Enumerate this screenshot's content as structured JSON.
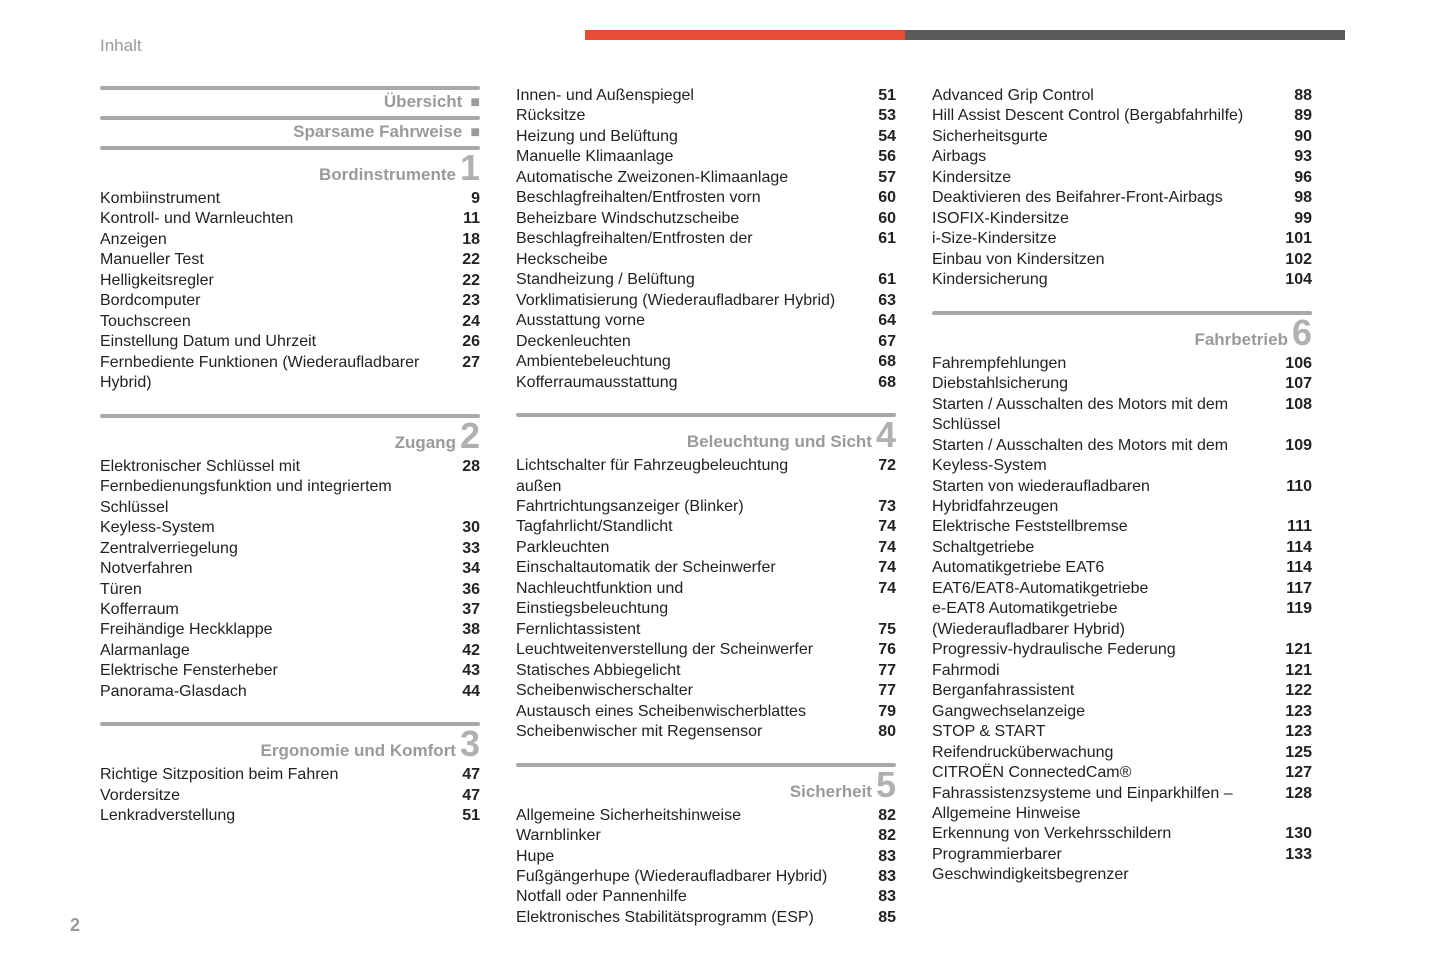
{
  "meta": {
    "title": "Inhalt",
    "page_number": "2"
  },
  "columns": [
    {
      "sections": [
        {
          "title": "Übersicht",
          "bullet": "■",
          "entries": []
        },
        {
          "title": "Sparsame Fahrweise",
          "bullet": "■",
          "entries": []
        },
        {
          "title": "Bordinstrumente",
          "number": "1",
          "entries": [
            {
              "label": "Kombiinstrument",
              "page": "9"
            },
            {
              "label": "Kontroll- und Warnleuchten",
              "page": "11"
            },
            {
              "label": "Anzeigen",
              "page": "18"
            },
            {
              "label": "Manueller Test",
              "page": "22"
            },
            {
              "label": "Helligkeitsregler",
              "page": "22"
            },
            {
              "label": "Bordcomputer",
              "page": "23"
            },
            {
              "label": "Touchscreen",
              "page": "24"
            },
            {
              "label": "Einstellung Datum und Uhrzeit",
              "page": "26"
            },
            {
              "label": "Fernbediente Funktionen (Wiederaufladbarer Hybrid)",
              "page": "27"
            }
          ]
        },
        {
          "title": "Zugang",
          "number": "2",
          "entries": [
            {
              "label": "Elektronischer Schlüssel mit Fernbedienungsfunktion und integriertem Schlüssel",
              "page": "28"
            },
            {
              "label": "Keyless-System",
              "page": "30"
            },
            {
              "label": "Zentralverriegelung",
              "page": "33"
            },
            {
              "label": "Notverfahren",
              "page": "34"
            },
            {
              "label": "Türen",
              "page": "36"
            },
            {
              "label": "Kofferraum",
              "page": "37"
            },
            {
              "label": "Freihändige Heckklappe",
              "page": "38"
            },
            {
              "label": "Alarmanlage",
              "page": "42"
            },
            {
              "label": "Elektrische Fensterheber",
              "page": "43"
            },
            {
              "label": "Panorama-Glasdach",
              "page": "44"
            }
          ]
        },
        {
          "title": "Ergonomie und Komfort",
          "number": "3",
          "entries": [
            {
              "label": "Richtige Sitzposition beim Fahren",
              "page": "47"
            },
            {
              "label": "Vordersitze",
              "page": "47"
            },
            {
              "label": "Lenkradverstellung",
              "page": "51"
            }
          ]
        }
      ]
    },
    {
      "sections": [
        {
          "continuation": true,
          "entries": [
            {
              "label": "Innen- und Außenspiegel",
              "page": "51"
            },
            {
              "label": "Rücksitze",
              "page": "53"
            },
            {
              "label": "Heizung und Belüftung",
              "page": "54"
            },
            {
              "label": "Manuelle Klimaanlage",
              "page": "56"
            },
            {
              "label": "Automatische Zweizonen-Klimaanlage",
              "page": "57"
            },
            {
              "label": "Beschlagfreihalten/Entfrosten vorn",
              "page": "60"
            },
            {
              "label": "Beheizbare Windschutzscheibe",
              "page": "60"
            },
            {
              "label": "Beschlagfreihalten/Entfrosten der Heckscheibe",
              "page": "61"
            },
            {
              "label": "Standheizung / Belüftung",
              "page": "61"
            },
            {
              "label": "Vorklimatisierung (Wiederaufladbarer Hybrid)",
              "page": "63"
            },
            {
              "label": "Ausstattung vorne",
              "page": "64"
            },
            {
              "label": "Deckenleuchten",
              "page": "67"
            },
            {
              "label": "Ambientebeleuchtung",
              "page": "68"
            },
            {
              "label": "Kofferraumausstattung",
              "page": "68"
            }
          ]
        },
        {
          "title": "Beleuchtung und Sicht",
          "number": "4",
          "entries": [
            {
              "label": "Lichtschalter für Fahrzeugbeleuchtung außen",
              "page": "72"
            },
            {
              "label": "Fahrtrichtungsanzeiger (Blinker)",
              "page": "73"
            },
            {
              "label": "Tagfahrlicht/Standlicht",
              "page": "74"
            },
            {
              "label": "Parkleuchten",
              "page": "74"
            },
            {
              "label": "Einschaltautomatik der Scheinwerfer",
              "page": "74"
            },
            {
              "label": "Nachleuchtfunktion und Einstiegsbeleuchtung",
              "page": "74"
            },
            {
              "label": "Fernlichtassistent",
              "page": "75"
            },
            {
              "label": "Leuchtweitenverstellung der Scheinwerfer",
              "page": "76"
            },
            {
              "label": "Statisches Abbiegelicht",
              "page": "77"
            },
            {
              "label": "Scheibenwischerschalter",
              "page": "77"
            },
            {
              "label": "Austausch eines Scheibenwischerblattes",
              "page": "79"
            },
            {
              "label": "Scheibenwischer mit Regensensor",
              "page": "80"
            }
          ]
        },
        {
          "title": "Sicherheit",
          "number": "5",
          "entries": [
            {
              "label": "Allgemeine Sicherheitshinweise",
              "page": "82"
            },
            {
              "label": "Warnblinker",
              "page": "82"
            },
            {
              "label": "Hupe",
              "page": "83"
            },
            {
              "label": "Fußgängerhupe (Wiederaufladbarer Hybrid)",
              "page": "83"
            },
            {
              "label": "Notfall oder Pannenhilfe",
              "page": "83"
            },
            {
              "label": "Elektronisches Stabilitätsprogramm (ESP)",
              "page": "85"
            }
          ]
        }
      ]
    },
    {
      "sections": [
        {
          "continuation": true,
          "entries": [
            {
              "label": "Advanced Grip Control",
              "page": "88"
            },
            {
              "label": "Hill Assist Descent Control (Bergabfahrhilfe)",
              "page": "89"
            },
            {
              "label": "Sicherheitsgurte",
              "page": "90"
            },
            {
              "label": "Airbags",
              "page": "93"
            },
            {
              "label": "Kindersitze",
              "page": "96"
            },
            {
              "label": "Deaktivieren des Beifahrer-Front-Airbags",
              "page": "98"
            },
            {
              "label": "ISOFIX-Kindersitze",
              "page": "99"
            },
            {
              "label": "i-Size-Kindersitze",
              "page": "101"
            },
            {
              "label": "Einbau von Kindersitzen",
              "page": "102"
            },
            {
              "label": "Kindersicherung",
              "page": "104"
            }
          ]
        },
        {
          "title": "Fahrbetrieb",
          "number": "6",
          "entries": [
            {
              "label": "Fahrempfehlungen",
              "page": "106"
            },
            {
              "label": "Diebstahlsicherung",
              "page": "107"
            },
            {
              "label": "Starten / Ausschalten des Motors mit dem Schlüssel",
              "page": "108"
            },
            {
              "label": "Starten / Ausschalten des Motors mit dem Keyless-System",
              "page": "109"
            },
            {
              "label": "Starten von wiederaufladbaren Hybridfahrzeugen",
              "page": "110"
            },
            {
              "label": "Elektrische Feststellbremse",
              "page": "111"
            },
            {
              "label": "Schaltgetriebe",
              "page": "114"
            },
            {
              "label": "Automatikgetriebe EAT6",
              "page": "114"
            },
            {
              "label": "EAT6/EAT8-Automatikgetriebe",
              "page": "117"
            },
            {
              "label": "e-EAT8 Automatikgetriebe (Wiederaufladbarer Hybrid)",
              "page": "119"
            },
            {
              "label": "Progressiv-hydraulische Federung",
              "page": "121"
            },
            {
              "label": "Fahrmodi",
              "page": "121"
            },
            {
              "label": "Berganfahrassistent",
              "page": "122"
            },
            {
              "label": "Gangwechselanzeige",
              "page": "123"
            },
            {
              "label": "STOP & START",
              "page": "123"
            },
            {
              "label": "Reifendrucküberwachung",
              "page": "125"
            },
            {
              "label": "CITROËN ConnectedCam®",
              "page": "127"
            },
            {
              "label": "Fahrassistenzsysteme und Einparkhilfen – Allgemeine Hinweise",
              "page": "128"
            },
            {
              "label": "Erkennung von Verkehrsschildern",
              "page": "130"
            },
            {
              "label": "Programmierbarer Geschwindigkeitsbegrenzer",
              "page": "133"
            }
          ]
        }
      ]
    }
  ]
}
